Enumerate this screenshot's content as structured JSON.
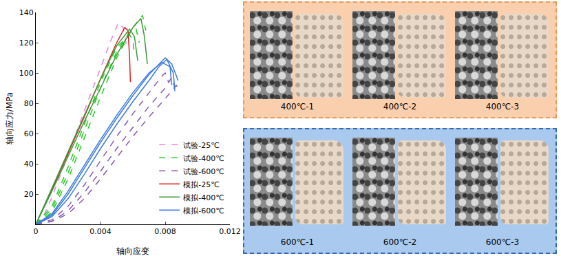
{
  "chart_data": {
    "type": "line",
    "x_label": "轴向应变",
    "y_label": "轴向应力/MPa",
    "xlim": [
      0,
      0.012
    ],
    "xticks": [
      0,
      0.004,
      0.008,
      0.012
    ],
    "ylim": [
      0,
      140
    ],
    "yticks": [
      20,
      40,
      60,
      80,
      100,
      120,
      140
    ],
    "legend": "bottom-right",
    "grid": false,
    "series": [
      {
        "name": "试验-25℃",
        "color": "#f47fe0",
        "line_style": "dashed",
        "x": [
          0,
          0.0005,
          0.001,
          0.002,
          0.003,
          0.004,
          0.0047,
          0.0051,
          0.0054,
          0.0056
        ],
        "values": [
          0,
          6,
          18,
          46,
          75,
          103,
          123,
          133,
          130,
          118
        ]
      },
      {
        "name": "试验-400℃",
        "color": "#22cc22",
        "line_style": "dashed",
        "x": [
          0,
          0.001,
          0.002,
          0.003,
          0.004,
          0.005,
          0.006,
          0.0066,
          0.0068
        ],
        "values": [
          0,
          8,
          30,
          57,
          84,
          110,
          130,
          138,
          128
        ]
      },
      {
        "name": "试验-400℃",
        "color": "#22cc22",
        "line_style": "dashed",
        "x": [
          0,
          0.001,
          0.002,
          0.003,
          0.004,
          0.005,
          0.0058,
          0.0062,
          0.0064
        ],
        "values": [
          0,
          10,
          34,
          62,
          90,
          114,
          127,
          129,
          120
        ]
      },
      {
        "name": "试验-400℃",
        "color": "#22cc22",
        "line_style": "dashed",
        "x": [
          0,
          0.001,
          0.002,
          0.003,
          0.004,
          0.005,
          0.0058,
          0.006,
          0.0061
        ],
        "values": [
          0,
          12,
          38,
          66,
          94,
          117,
          125,
          122,
          112
        ]
      },
      {
        "name": "试验-600℃",
        "color": "#8855bb",
        "line_style": "dashed",
        "x": [
          0,
          0.001,
          0.002,
          0.003,
          0.004,
          0.005,
          0.006,
          0.007,
          0.0078,
          0.008,
          0.0082
        ],
        "values": [
          0,
          3,
          12,
          26,
          42,
          58,
          73,
          87,
          98,
          100,
          94
        ]
      },
      {
        "name": "试验-600℃",
        "color": "#8855bb",
        "line_style": "dashed",
        "x": [
          0,
          0.001,
          0.002,
          0.003,
          0.004,
          0.005,
          0.006,
          0.007,
          0.008,
          0.0084,
          0.0086
        ],
        "values": [
          0,
          2,
          9,
          21,
          35,
          50,
          64,
          78,
          90,
          97,
          90
        ]
      },
      {
        "name": "试验-600℃",
        "color": "#8855bb",
        "line_style": "dashed",
        "x": [
          0,
          0.001,
          0.002,
          0.003,
          0.004,
          0.005,
          0.006,
          0.007,
          0.008,
          0.0087,
          0.0088
        ],
        "values": [
          0,
          2,
          7,
          17,
          30,
          44,
          58,
          71,
          83,
          92,
          88
        ]
      },
      {
        "name": "模拟-25℃",
        "color": "#e02020",
        "line_style": "solid",
        "x": [
          0,
          0.001,
          0.002,
          0.003,
          0.004,
          0.005,
          0.0055,
          0.0057,
          0.0058,
          0.00585
        ],
        "values": [
          0,
          23,
          47,
          71,
          96,
          120,
          130,
          128,
          110,
          94
        ]
      },
      {
        "name": "模拟-400℃",
        "color": "#3a9a3a",
        "line_style": "solid",
        "x": [
          0,
          0.001,
          0.002,
          0.003,
          0.004,
          0.005,
          0.006,
          0.0065,
          0.0067,
          0.0069
        ],
        "values": [
          0,
          22,
          45,
          68,
          90,
          112,
          130,
          136,
          125,
          106
        ]
      },
      {
        "name": "模拟-400℃",
        "color": "#3a9a3a",
        "line_style": "solid",
        "x": [
          0,
          0.001,
          0.002,
          0.003,
          0.004,
          0.005,
          0.0058,
          0.0061,
          0.0063
        ],
        "values": [
          0,
          24,
          48,
          72,
          96,
          118,
          129,
          124,
          108
        ]
      },
      {
        "name": "模拟-600℃",
        "color": "#3a7ae0",
        "line_style": "solid",
        "x": [
          0,
          0.001,
          0.002,
          0.003,
          0.004,
          0.005,
          0.006,
          0.007,
          0.0078,
          0.008,
          0.0084,
          0.0088
        ],
        "values": [
          0,
          6,
          20,
          37,
          54,
          70,
          85,
          99,
          108,
          110,
          106,
          95
        ]
      },
      {
        "name": "模拟-600℃",
        "color": "#3a7ae0",
        "line_style": "solid",
        "x": [
          0,
          0.001,
          0.002,
          0.003,
          0.004,
          0.005,
          0.006,
          0.007,
          0.0076,
          0.0081,
          0.0085,
          0.0086
        ],
        "values": [
          0,
          5,
          17,
          33,
          50,
          66,
          81,
          95,
          104,
          109,
          100,
          88
        ]
      },
      {
        "name": "模拟-600℃",
        "color": "#3a7ae0",
        "line_style": "solid",
        "x": [
          0,
          0.001,
          0.002,
          0.003,
          0.004,
          0.005,
          0.006,
          0.007,
          0.0078,
          0.0083,
          0.0084
        ],
        "values": [
          0,
          7,
          22,
          39,
          56,
          72,
          87,
          100,
          107,
          104,
          92
        ]
      }
    ]
  },
  "panels": [
    {
      "labels": [
        "400℃-1",
        "400℃-2",
        "400℃-3"
      ]
    },
    {
      "labels": [
        "600℃-1",
        "600℃-2",
        "600℃-3"
      ]
    }
  ]
}
